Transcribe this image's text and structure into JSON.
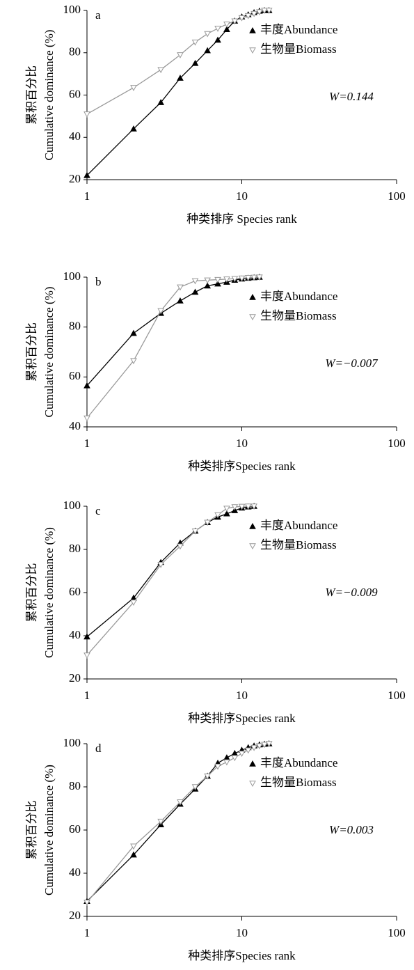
{
  "chart_data": [
    {
      "type": "line",
      "panel": "a",
      "ylabel": [
        "累积百分比",
        "Cumulative dominance (%)"
      ],
      "xlabel": "种类排序 Species rank",
      "annotation": "W=0.144",
      "xlog": true,
      "xlim": [
        1,
        100
      ],
      "xticks": [
        1,
        10,
        100
      ],
      "ylim": [
        20,
        100
      ],
      "yticks": [
        20,
        40,
        60,
        80,
        100
      ],
      "x": [
        1,
        2,
        3,
        4,
        5,
        6,
        7,
        8,
        9,
        10,
        11,
        12,
        13,
        14,
        15
      ],
      "series": [
        {
          "name": "丰度Abundance",
          "color": "#000000",
          "values": [
            22,
            44,
            56.5,
            68,
            75,
            81,
            86,
            91,
            95,
            97,
            98,
            99,
            99.7,
            100,
            100
          ]
        },
        {
          "name": "生物量Biomass",
          "color": "#999999",
          "values": [
            51,
            63.5,
            72,
            79,
            85,
            89,
            91.5,
            93.5,
            95,
            96.5,
            97.5,
            98.5,
            99.3,
            100,
            100
          ]
        }
      ]
    },
    {
      "type": "line",
      "panel": "b",
      "ylabel": [
        "累积百分比",
        "Cumulative dominance (%)"
      ],
      "xlabel": "种类排序Species rank",
      "annotation": "W=−0.007",
      "xlog": true,
      "xlim": [
        1,
        100
      ],
      "xticks": [
        1,
        10,
        100
      ],
      "ylim": [
        40,
        100
      ],
      "yticks": [
        40,
        60,
        80,
        100
      ],
      "x": [
        1,
        2,
        3,
        4,
        5,
        6,
        7,
        8,
        9,
        10,
        11,
        12,
        13
      ],
      "series": [
        {
          "name": "丰度Abundance",
          "color": "#000000",
          "values": [
            56.5,
            77.5,
            85.5,
            90.5,
            94,
            96.5,
            97.3,
            98,
            98.8,
            99.3,
            99.6,
            99.8,
            100
          ]
        },
        {
          "name": "生物量Biomass",
          "color": "#999999",
          "values": [
            43.5,
            66.5,
            86.5,
            96,
            98.5,
            98.8,
            99,
            99.2,
            99.4,
            99.6,
            99.8,
            99.9,
            100
          ]
        }
      ]
    },
    {
      "type": "line",
      "panel": "c",
      "ylabel": [
        "累积百分比",
        "Cumulative dominance (%)"
      ],
      "xlabel": "种类排序Species rank",
      "annotation": "W=−0.009",
      "xlog": true,
      "xlim": [
        1,
        100
      ],
      "xticks": [
        1,
        10,
        100
      ],
      "ylim": [
        20,
        100
      ],
      "yticks": [
        20,
        40,
        60,
        80,
        100
      ],
      "x": [
        1,
        2,
        3,
        4,
        5,
        6,
        7,
        8,
        9,
        10,
        11,
        12
      ],
      "series": [
        {
          "name": "丰度Abundance",
          "color": "#000000",
          "values": [
            39.5,
            57.5,
            74,
            83,
            88.5,
            92.5,
            95,
            96.5,
            98,
            99.2,
            99.7,
            100
          ]
        },
        {
          "name": "生物量Biomass",
          "color": "#999999",
          "values": [
            31,
            55.5,
            73,
            81.5,
            88.5,
            92.5,
            96,
            99,
            99.7,
            99.9,
            100,
            100
          ]
        }
      ]
    },
    {
      "type": "line",
      "panel": "d",
      "ylabel": [
        "累积百分比",
        "Cumulative dominance (%)"
      ],
      "xlabel": "种类排序Species rank",
      "annotation": "W=0.003",
      "xlog": true,
      "xlim": [
        1,
        100
      ],
      "xticks": [
        1,
        10,
        100
      ],
      "ylim": [
        20,
        100
      ],
      "yticks": [
        20,
        40,
        60,
        80,
        100
      ],
      "x": [
        1,
        2,
        3,
        4,
        5,
        6,
        7,
        8,
        9,
        10,
        11,
        12,
        13,
        14,
        15
      ],
      "series": [
        {
          "name": "丰度Abundance",
          "color": "#000000",
          "values": [
            27,
            48.5,
            62.5,
            72,
            79,
            85,
            91,
            93.5,
            95.5,
            97,
            98.2,
            99,
            99.5,
            99.8,
            100
          ]
        },
        {
          "name": "生物量Biomass",
          "color": "#999999",
          "values": [
            26.5,
            52.5,
            64,
            73,
            80,
            85,
            89.5,
            91.5,
            93.5,
            95.5,
            97,
            98.2,
            99,
            99.6,
            100
          ]
        }
      ]
    }
  ]
}
